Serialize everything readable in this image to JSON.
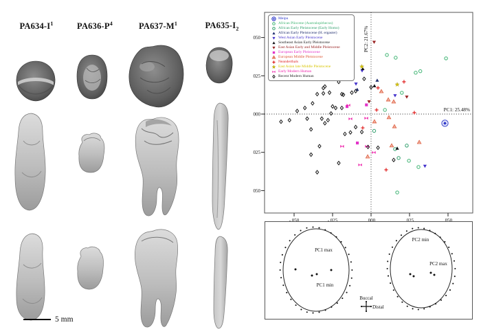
{
  "figure": {
    "specimens": [
      {
        "base": "PA634-I",
        "affix": "1",
        "affix_pos": "sup"
      },
      {
        "base": "PA636-P",
        "affix": "4",
        "affix_pos": "sup"
      },
      {
        "base": "PA637-M",
        "affix": "1",
        "affix_pos": "sup"
      },
      {
        "base": "PA635-I",
        "affix": "2",
        "affix_pos": "sub"
      }
    ],
    "scale_bar": "5 mm"
  },
  "chart_data": {
    "type": "scatter",
    "xlabel": "PC1: 25.48%",
    "ylabel": "PC2: 21.67%",
    "xlim": [
      -0.069,
      0.066
    ],
    "ylim": [
      -0.0646,
      0.0664
    ],
    "grid": false,
    "reference_lines": {
      "x": 0.0,
      "y": 0.0
    },
    "legend_position": "top-left",
    "x_ticks": {
      "values": [
        -0.05,
        -0.025,
        0.0,
        0.025,
        0.05
      ],
      "labels": [
        "-.050",
        "-.025",
        ".000",
        ".025",
        ".050"
      ]
    },
    "y_ticks": {
      "values": [
        -0.05,
        -0.025,
        0.0,
        0.025,
        0.05
      ],
      "labels": [
        "-.050",
        "-.025",
        ".000",
        ".025",
        ".050"
      ]
    },
    "series": [
      {
        "name": "Meipu",
        "marker": "circled-star",
        "color": "#2a35c8",
        "size": 4.6,
        "points": [
          [
            0.048,
            -0.006
          ]
        ]
      },
      {
        "name": "African Pliocene (Australopithecus)",
        "marker": "circle-open",
        "color": "#3cb371",
        "points": [
          [
            0.0103,
            0.0386
          ],
          [
            0.016,
            0.0368
          ],
          [
            0.0487,
            0.0364
          ],
          [
            0.032,
            0.028
          ],
          [
            0.029,
            0.027
          ],
          [
            0.02,
            0.0139
          ],
          [
            0.009,
            0.0027
          ],
          [
            0.0246,
            -0.0305
          ],
          [
            0.0308,
            -0.0346
          ],
          [
            0.017,
            -0.0512
          ]
        ]
      },
      {
        "name": "African Early Pleistocene (Early Homo)",
        "marker": "circle-open",
        "color": "#2e9e6b",
        "points": [
          [
            0.0156,
            -0.0229
          ],
          [
            0.0179,
            -0.0287
          ],
          [
            0.0232,
            -0.0206
          ],
          [
            0.002,
            -0.011
          ]
        ]
      },
      {
        "name": "African Early Pleistocene (H. ergaster)",
        "marker": "triangle-up",
        "color": "#1f2d6e",
        "points": [
          [
            -0.009,
            0.016
          ],
          [
            0.004,
            0.022
          ]
        ]
      },
      {
        "name": "West Asian Early Pleistocene",
        "marker": "triangle-down",
        "color": "#4433cc",
        "points": [
          [
            -0.02,
            0.0274
          ],
          [
            -0.0058,
            0.0283
          ],
          [
            -0.0098,
            0.0197
          ],
          [
            0.0156,
            0.0121
          ],
          [
            0.035,
            -0.034
          ]
        ]
      },
      {
        "name": "Southeast Asian Early Pleistocene",
        "marker": "triangle-up",
        "color": "#15151a",
        "points": [
          [
            0.0022,
            0.0184
          ],
          [
            0.017,
            -0.0224
          ],
          [
            -0.0054,
            0.0296
          ]
        ]
      },
      {
        "name": "East Asian Early and Middle Pleistocene",
        "marker": "triangle-down",
        "color": "#992222",
        "points": [
          [
            0.0232,
            0.0112
          ],
          [
            -0.0013,
            0.0081
          ],
          [
            0.002,
            0.047
          ]
        ]
      },
      {
        "name": "European Early Pleistocene",
        "marker": "square",
        "color": "#e233c8",
        "points": [
          [
            -0.0156,
            0.0049
          ],
          [
            -0.0089,
            -0.0189
          ],
          [
            -0.003,
            0.006
          ]
        ]
      },
      {
        "name": "European Middle Pleistocene",
        "marker": "triangle-open",
        "color": "#dd5533",
        "points": [
          [
            0.0067,
            0.0148
          ],
          [
            0.0112,
            0.0094
          ],
          [
            0.0147,
            0.0081
          ],
          [
            0.0116,
            -0.0022
          ],
          [
            0.0022,
            -0.0049
          ],
          [
            0.0152,
            -0.0081
          ],
          [
            0.0134,
            -0.0206
          ],
          [
            0.0313,
            -0.0184
          ],
          [
            -0.0022,
            -0.0278
          ]
        ]
      },
      {
        "name": "Neanderthals",
        "marker": "plus",
        "color": "#e02020",
        "points": [
          [
            0.0045,
            0.0171
          ],
          [
            0.0036,
            0.0027
          ],
          [
            0.0098,
            -0.0364
          ],
          [
            -0.0054,
            -0.009
          ],
          [
            0.0281,
            0.0009
          ],
          [
            0.0214,
            0.0211
          ]
        ]
      },
      {
        "name": "East Asian late Middle Pleistocene",
        "marker": "star",
        "color": "#d8c500",
        "points": [
          [
            0.017,
            0.0193
          ],
          [
            -0.006,
            0.031
          ]
        ]
      },
      {
        "name": "Early Modern Human",
        "marker": "bowtie",
        "color": "#ee22aa",
        "points": [
          [
            -0.0134,
            -0.0031
          ],
          [
            -0.0031,
            -0.0027
          ],
          [
            0.0018,
            -0.0251
          ],
          [
            -0.0027,
            -0.0211
          ],
          [
            -0.0188,
            -0.0211
          ],
          [
            -0.0147,
            0.0058
          ],
          [
            -0.0071,
            -0.0332
          ]
        ]
      },
      {
        "name": "Recent Modern Human",
        "marker": "diamond-open",
        "color": "#1a1a1a",
        "points": [
          [
            -0.035,
            0.013
          ],
          [
            -0.031,
            0.017
          ],
          [
            -0.03,
            0.018
          ],
          [
            -0.031,
            0.0135
          ],
          [
            -0.027,
            0.014
          ],
          [
            -0.019,
            0.025
          ],
          [
            -0.0165,
            0.0256
          ],
          [
            -0.021,
            0.021
          ],
          [
            -0.019,
            0.013
          ],
          [
            -0.018,
            0.0126
          ],
          [
            -0.0125,
            0.014
          ],
          [
            -0.01,
            0.015
          ],
          [
            -0.025,
            0.005
          ],
          [
            -0.023,
            0.004
          ],
          [
            -0.019,
            0.004
          ],
          [
            -0.026,
            0.0004
          ],
          [
            -0.032,
            -0.003
          ],
          [
            -0.028,
            -0.004
          ],
          [
            -0.03,
            -0.006
          ],
          [
            -0.039,
            -0.01
          ],
          [
            -0.017,
            -0.013
          ],
          [
            -0.0134,
            -0.012
          ],
          [
            -0.01,
            -0.0085
          ],
          [
            -0.006,
            -0.0117
          ],
          [
            -0.0585,
            -0.005
          ],
          [
            -0.053,
            -0.004
          ],
          [
            -0.048,
            0.002
          ],
          [
            -0.043,
            0.004
          ],
          [
            -0.0415,
            -0.003
          ],
          [
            -0.038,
            0.007
          ],
          [
            -0.0335,
            -0.021
          ],
          [
            -0.039,
            -0.0265
          ],
          [
            -0.021,
            -0.032
          ],
          [
            -0.035,
            -0.038
          ],
          [
            0.0045,
            -0.022
          ],
          [
            0.0147,
            -0.03
          ],
          [
            -0.002,
            -0.0215
          ],
          [
            0.0,
            0.0175
          ],
          [
            -0.0045,
            0.023
          ]
        ]
      }
    ]
  },
  "shape_panel": {
    "pc1_max": "PC1 max",
    "pc1_min": "PC1 min",
    "pc2_min": "PC2 min",
    "pc2_max": "PC2 max",
    "buccal": "Buccal",
    "distal": "Distal"
  }
}
